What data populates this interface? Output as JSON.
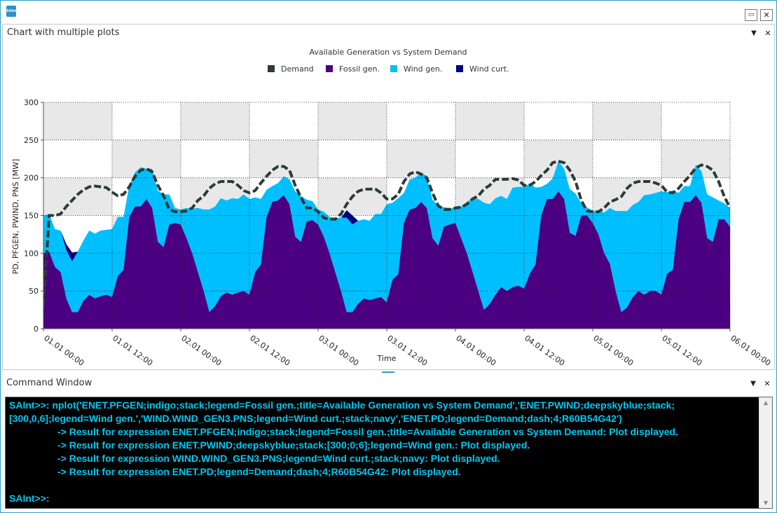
{
  "app": {
    "logo_text": "SAInt"
  },
  "window": {
    "maximize_glyph": "▭",
    "close_glyph": "✕"
  },
  "chart_panel": {
    "title": "Chart with multiple plots",
    "dropdown_glyph": "▼",
    "close_glyph": "✕"
  },
  "command_panel": {
    "title": "Command Window",
    "dropdown_glyph": "▼",
    "close_glyph": "✕"
  },
  "console": {
    "lines": [
      "SAInt>>: nplot('ENET.PFGEN;indigo;stack;legend=Fossil gen.;title=Available Generation vs System Demand','ENET.PWIND;deepskyblue;stack;",
      "[300,0,6];legend=Wind gen.','WIND.WIND_GEN3.PNS;legend=Wind curt.;stack;navy','ENET.PD;legend=Demand;dash;4;R60B54G42')",
      "-> Result for expression ENET.PFGEN;indigo;stack;legend=Fossil gen.;title=Available Generation vs System Demand: Plot displayed.",
      "-> Result for expression ENET.PWIND;deepskyblue;stack;[300;0;6];legend=Wind gen.: Plot displayed.",
      "-> Result for expression WIND.WIND_GEN3.PNS;legend=Wind curt.;stack;navy: Plot displayed.",
      "-> Result for expression ENET.PD;legend=Demand;dash;4;R60B54G42: Plot displayed.",
      "",
      "SAInt>>:"
    ],
    "text_color": "#00c8f0",
    "background": "#000000"
  },
  "chart_data": {
    "type": "area",
    "title": "Available Generation vs System Demand",
    "xlabel": "Time",
    "ylabel": "PD, PFGEN, PWIND, PNS [MW]",
    "ylim": [
      0,
      300
    ],
    "yticks": [
      0,
      50,
      100,
      150,
      200,
      250,
      300
    ],
    "xlim": [
      0,
      120
    ],
    "x_ticks": [
      0,
      12,
      24,
      36,
      48,
      60,
      72,
      84,
      96,
      108,
      120
    ],
    "x_tick_labels": [
      "01.01 00:00",
      "01.01 12:00",
      "02.01 00:00",
      "02.01 12:00",
      "03.01 00:00",
      "03.01 12:00",
      "04.01 00:00",
      "04.01 12:00",
      "05.01 00:00",
      "05.01 12:00",
      "06.01 00:00"
    ],
    "x_hours": [
      0,
      1,
      2,
      3,
      4,
      5,
      6,
      7,
      8,
      9,
      10,
      11,
      12,
      13,
      14,
      15,
      16,
      17,
      18,
      19,
      20,
      21,
      22,
      23,
      24,
      25,
      26,
      27,
      28,
      29,
      30,
      31,
      32,
      33,
      34,
      35,
      36,
      37,
      38,
      39,
      40,
      41,
      42,
      43,
      44,
      45,
      46,
      47,
      48,
      49,
      50,
      51,
      52,
      53,
      54,
      55,
      56,
      57,
      58,
      59,
      60,
      61,
      62,
      63,
      64,
      65,
      66,
      67,
      68,
      69,
      70,
      71,
      72,
      73,
      74,
      75,
      76,
      77,
      78,
      79,
      80,
      81,
      82,
      83,
      84,
      85,
      86,
      87,
      88,
      89,
      90,
      91,
      92,
      93,
      94,
      95,
      96,
      97,
      98,
      99,
      100,
      101,
      102,
      103,
      104,
      105,
      106,
      107,
      108,
      109,
      110,
      111,
      112,
      113,
      114,
      115,
      116,
      117,
      118,
      119,
      120
    ],
    "legend": [
      {
        "name": "Demand",
        "color": "#2A3C36"
      },
      {
        "name": "Fossil gen.",
        "color": "#4B0082"
      },
      {
        "name": "Wind gen.",
        "color": "#00BFFF"
      },
      {
        "name": "Wind curt.",
        "color": "#000080"
      }
    ],
    "series": [
      {
        "name": "Fossil gen.",
        "values": [
          100,
          102,
          82,
          75,
          40,
          22,
          22,
          37,
          45,
          40,
          43,
          45,
          42,
          70,
          78,
          148,
          162,
          162,
          172,
          160,
          115,
          108,
          138,
          140,
          138,
          120,
          100,
          75,
          50,
          22,
          30,
          43,
          48,
          45,
          48,
          50,
          45,
          75,
          85,
          148,
          168,
          170,
          177,
          165,
          122,
          115,
          142,
          144,
          138,
          122,
          100,
          75,
          50,
          22,
          22,
          33,
          40,
          38,
          40,
          42,
          35,
          65,
          72,
          140,
          158,
          160,
          168,
          160,
          120,
          110,
          135,
          138,
          140,
          120,
          100,
          75,
          50,
          25,
          33,
          45,
          55,
          50,
          55,
          57,
          53,
          73,
          85,
          150,
          172,
          172,
          182,
          172,
          127,
          123,
          150,
          150,
          140,
          125,
          100,
          86,
          50,
          22,
          28,
          42,
          50,
          45,
          50,
          50,
          45,
          73,
          78,
          145,
          168,
          168,
          177,
          167,
          120,
          115,
          145,
          145,
          135
        ]
      },
      {
        "name": "Wind gen.",
        "values": [
          50,
          50,
          50,
          55,
          64,
          67,
          80,
          80,
          85,
          86,
          87,
          86,
          90,
          78,
          70,
          42,
          45,
          52,
          40,
          52,
          68,
          70,
          40,
          20,
          20,
          40,
          59,
          85,
          108,
          136,
          132,
          130,
          122,
          128,
          124,
          128,
          127,
          99,
          87,
          36,
          21,
          23,
          25,
          33,
          60,
          61,
          29,
          25,
          20,
          33,
          48,
          72,
          97,
          125,
          116,
          110,
          105,
          105,
          112,
          110,
          130,
          102,
          101,
          40,
          40,
          40,
          39,
          42,
          51,
          53,
          26,
          22,
          20,
          42,
          68,
          98,
          122,
          142,
          132,
          128,
          121,
          122,
          132,
          131,
          135,
          120,
          102,
          38,
          20,
          27,
          40,
          40,
          58,
          56,
          16,
          11,
          16,
          32,
          54,
          74,
          106,
          134,
          128,
          122,
          118,
          132,
          128,
          130,
          137,
          108,
          105,
          35,
          21,
          21,
          40,
          42,
          58,
          59,
          25,
          21,
          25
        ]
      },
      {
        "name": "Wind curt.",
        "values": [
          0,
          0,
          0,
          0,
          0,
          0,
          0,
          0,
          0,
          0,
          0,
          0,
          0,
          0,
          0,
          0,
          0,
          0,
          0,
          0,
          0,
          0,
          0,
          0,
          0,
          0,
          0,
          0,
          0,
          0,
          0,
          0,
          0,
          0,
          0,
          0,
          0,
          0,
          0,
          0,
          0,
          0,
          0,
          0,
          0,
          0,
          0,
          0,
          0,
          0,
          0,
          0,
          0,
          0,
          0,
          0,
          0,
          0,
          0,
          0,
          0,
          0,
          0,
          0,
          0,
          0,
          0,
          0,
          0,
          0,
          0,
          0,
          0,
          0,
          0,
          0,
          0,
          0,
          0,
          0,
          0,
          0,
          0,
          0,
          0,
          0,
          0,
          0,
          0,
          0,
          0,
          0,
          0,
          0,
          0,
          0,
          0,
          0,
          0,
          0,
          0,
          0,
          0,
          0,
          0,
          0,
          0,
          0,
          0,
          0,
          0,
          0,
          0,
          0,
          0,
          0,
          0,
          0,
          0,
          0,
          0
        ]
      },
      {
        "name": "Demand",
        "values": [
          30,
          150,
          150,
          152,
          162,
          170,
          178,
          184,
          188,
          189,
          188,
          187,
          181,
          176,
          178,
          188,
          202,
          210,
          212,
          208,
          190,
          176,
          158,
          155,
          155,
          156,
          160,
          170,
          176,
          186,
          192,
          195,
          195,
          195,
          190,
          183,
          180,
          183,
          193,
          202,
          210,
          215,
          215,
          210,
          190,
          174,
          160,
          160,
          155,
          147,
          145,
          145,
          152,
          165,
          175,
          182,
          185,
          185,
          185,
          180,
          172,
          172,
          178,
          195,
          205,
          208,
          205,
          200,
          180,
          163,
          158,
          158,
          160,
          161,
          165,
          172,
          176,
          185,
          190,
          198,
          198,
          198,
          199,
          197,
          190,
          190,
          195,
          203,
          210,
          220,
          222,
          220,
          210,
          195,
          170,
          156,
          155,
          155,
          160,
          168,
          171,
          175,
          186,
          193,
          195,
          195,
          195,
          193,
          190,
          181,
          180,
          186,
          195,
          203,
          213,
          217,
          215,
          210,
          195,
          175,
          160
        ]
      }
    ],
    "wind_curtailment_bumps": [
      {
        "hour": 4,
        "extra": 8
      },
      {
        "hour": 5,
        "extra": 12
      },
      {
        "hour": 53,
        "extra": 10
      },
      {
        "hour": 54,
        "extra": 12
      }
    ],
    "dash_style": "dash;4"
  }
}
